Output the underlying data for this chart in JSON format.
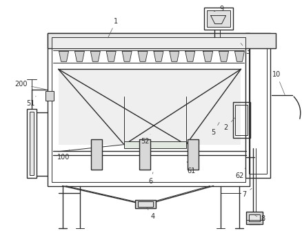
{
  "fig_width": 4.38,
  "fig_height": 3.35,
  "dpi": 100,
  "bg_color": "#ffffff",
  "line_color": "#2a2a2a"
}
